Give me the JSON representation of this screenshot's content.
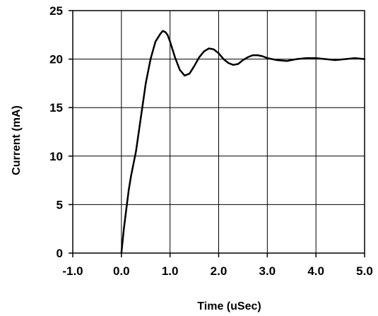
{
  "chart_data": {
    "type": "line",
    "title": "",
    "xlabel": "Time (uSec)",
    "ylabel": "Current (mA)",
    "xlim": [
      -1.0,
      5.0
    ],
    "ylim": [
      0,
      25
    ],
    "x_ticks": [
      "-1.0",
      "0.0",
      "1.0",
      "2.0",
      "3.0",
      "4.0",
      "5.0"
    ],
    "y_ticks": [
      "0",
      "5",
      "10",
      "15",
      "20",
      "25"
    ],
    "grid": true,
    "series": [
      {
        "x": [
          0.0,
          0.05,
          0.1,
          0.15,
          0.2,
          0.3,
          0.4,
          0.5,
          0.6,
          0.7,
          0.8,
          0.85,
          0.9,
          0.95,
          1.0,
          1.1,
          1.2,
          1.3,
          1.4,
          1.5,
          1.6,
          1.7,
          1.8,
          1.9,
          2.0,
          2.1,
          2.2,
          2.3,
          2.4,
          2.5,
          2.6,
          2.7,
          2.8,
          2.9,
          3.0,
          3.2,
          3.4,
          3.6,
          3.8,
          4.0,
          4.2,
          4.4,
          4.6,
          4.8,
          5.0
        ],
        "y": [
          0.0,
          2.5,
          4.5,
          6.5,
          8.0,
          10.5,
          14.0,
          17.5,
          20.0,
          21.8,
          22.6,
          22.9,
          22.8,
          22.5,
          21.8,
          20.2,
          18.9,
          18.3,
          18.5,
          19.3,
          20.2,
          20.8,
          21.1,
          21.0,
          20.6,
          20.0,
          19.6,
          19.4,
          19.5,
          19.9,
          20.2,
          20.4,
          20.4,
          20.3,
          20.1,
          19.9,
          19.8,
          20.0,
          20.1,
          20.1,
          20.0,
          19.9,
          20.0,
          20.1,
          20.0
        ]
      }
    ]
  }
}
